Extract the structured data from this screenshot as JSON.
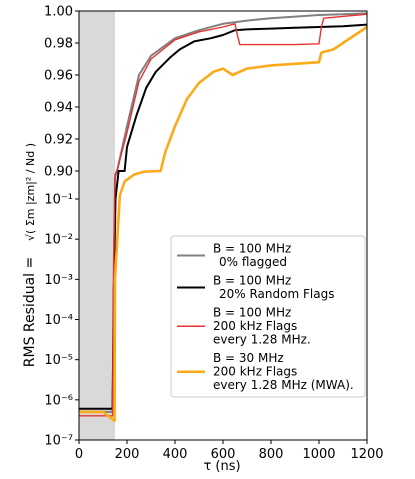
{
  "chart_data": {
    "type": "line",
    "xlabel": "τ (ns)",
    "ylabel_prefix": "RMS Residual = ",
    "ylabel_formula": "√( Σm |zm|² / Nd )",
    "xlim": [
      0,
      1200
    ],
    "x_ticks": [
      {
        "value": 0,
        "label": "0"
      },
      {
        "value": 200,
        "label": "200"
      },
      {
        "value": 400,
        "label": "400"
      },
      {
        "value": 600,
        "label": "600"
      },
      {
        "value": 800,
        "label": "800"
      },
      {
        "value": 1000,
        "label": "1000"
      },
      {
        "value": 1200,
        "label": "1200"
      }
    ],
    "y_upper_panel": {
      "scale": "linear",
      "ylim": [
        0.9,
        1.0
      ],
      "ticks": [
        {
          "value": 0.9,
          "label": "0.90"
        },
        {
          "value": 0.92,
          "label": "0.92"
        },
        {
          "value": 0.94,
          "label": "0.94"
        },
        {
          "value": 0.96,
          "label": "0.96"
        },
        {
          "value": 0.98,
          "label": "0.98"
        },
        {
          "value": 1.0,
          "label": "1.00"
        }
      ]
    },
    "y_lower_panel": {
      "scale": "log",
      "ylim": [
        1e-07,
        0.1
      ],
      "ticks": [
        {
          "exp": -1,
          "label": "10⁻¹"
        },
        {
          "exp": -2,
          "label": "10⁻²"
        },
        {
          "exp": -3,
          "label": "10⁻³"
        },
        {
          "exp": -4,
          "label": "10⁻⁴"
        },
        {
          "exp": -5,
          "label": "10⁻⁵"
        },
        {
          "exp": -6,
          "label": "10⁻⁶"
        },
        {
          "exp": -7,
          "label": "10⁻⁷"
        }
      ]
    },
    "shaded_region": {
      "x0": 0,
      "x1": 150,
      "color": "#d9d9d9"
    },
    "legend_position": "lower-right",
    "series": [
      {
        "name_lines": [
          "B = 100 MHz",
          "0% flagged"
        ],
        "color": "#808080",
        "points": [
          [
            0,
            5e-07
          ],
          [
            140,
            5e-07
          ],
          [
            145,
            0.002
          ],
          [
            150,
            0.7
          ],
          [
            160,
            0.901
          ],
          [
            200,
            0.928
          ],
          [
            250,
            0.96
          ],
          [
            300,
            0.972
          ],
          [
            400,
            0.983
          ],
          [
            500,
            0.988
          ],
          [
            600,
            0.992
          ],
          [
            700,
            0.994
          ],
          [
            800,
            0.9955
          ],
          [
            900,
            0.9965
          ],
          [
            1000,
            0.9975
          ],
          [
            1100,
            0.998
          ],
          [
            1200,
            0.9985
          ]
        ]
      },
      {
        "name_lines": [
          "B = 100 MHz",
          "20% Random Flags"
        ],
        "color": "#000000",
        "points": [
          [
            0,
            6e-07
          ],
          [
            140,
            6e-07
          ],
          [
            145,
            0.0005
          ],
          [
            152,
            0.1
          ],
          [
            165,
            0.899
          ],
          [
            190,
            0.9
          ],
          [
            200,
            0.915
          ],
          [
            240,
            0.935
          ],
          [
            280,
            0.952
          ],
          [
            320,
            0.962
          ],
          [
            380,
            0.971
          ],
          [
            420,
            0.976
          ],
          [
            480,
            0.981
          ],
          [
            550,
            0.983
          ],
          [
            600,
            0.985
          ],
          [
            650,
            0.988
          ],
          [
            700,
            0.9885
          ],
          [
            800,
            0.989
          ],
          [
            900,
            0.9895
          ],
          [
            1000,
            0.99
          ],
          [
            1100,
            0.9905
          ],
          [
            1200,
            0.9915
          ]
        ]
      },
      {
        "name_lines": [
          "B = 100 MHz",
          "200 kHz Flags",
          "every 1.28 MHz."
        ],
        "color": "#e8332f",
        "points": [
          [
            0,
            4e-07
          ],
          [
            140,
            4e-07
          ],
          [
            145,
            0.003
          ],
          [
            150,
            0.8
          ],
          [
            160,
            0.901
          ],
          [
            200,
            0.924
          ],
          [
            250,
            0.956
          ],
          [
            300,
            0.97
          ],
          [
            400,
            0.982
          ],
          [
            500,
            0.987
          ],
          [
            600,
            0.99
          ],
          [
            650,
            0.992
          ],
          [
            660,
            0.985
          ],
          [
            670,
            0.979
          ],
          [
            800,
            0.979
          ],
          [
            900,
            0.979
          ],
          [
            1000,
            0.9795
          ],
          [
            1010,
            0.99
          ],
          [
            1020,
            0.9955
          ],
          [
            1200,
            0.998
          ]
        ]
      },
      {
        "name_lines": [
          "B = 30 MHz",
          "200 kHz Flags",
          "every 1.28 MHz (MWA)."
        ],
        "color": "#fbaa19",
        "points": [
          [
            0,
            5e-07
          ],
          [
            100,
            5e-07
          ],
          [
            148,
            3e-07
          ],
          [
            150,
            0.001
          ],
          [
            170,
            0.2
          ],
          [
            190,
            0.6
          ],
          [
            230,
            0.8
          ],
          [
            270,
            0.88
          ],
          [
            340,
            0.9
          ],
          [
            360,
            0.912
          ],
          [
            400,
            0.928
          ],
          [
            450,
            0.945
          ],
          [
            500,
            0.955
          ],
          [
            560,
            0.962
          ],
          [
            600,
            0.964
          ],
          [
            640,
            0.96
          ],
          [
            700,
            0.964
          ],
          [
            800,
            0.966
          ],
          [
            900,
            0.967
          ],
          [
            1000,
            0.968
          ],
          [
            1010,
            0.974
          ],
          [
            1060,
            0.976
          ],
          [
            1100,
            0.98
          ],
          [
            1150,
            0.985
          ],
          [
            1200,
            0.99
          ]
        ]
      }
    ]
  }
}
